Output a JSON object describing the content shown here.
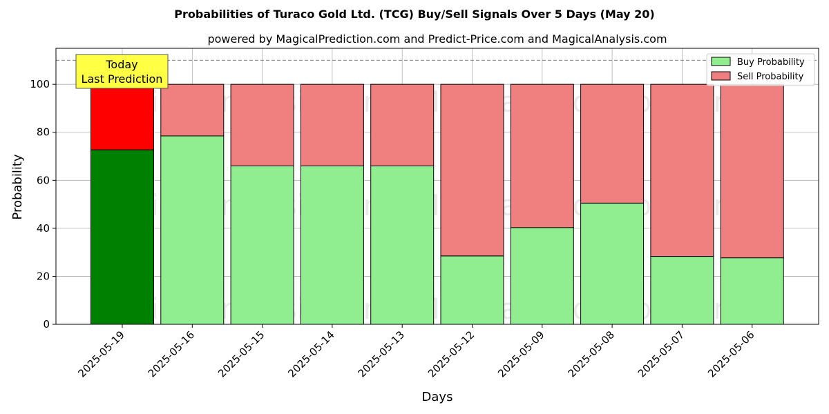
{
  "chart_data": {
    "type": "bar",
    "stacked": true,
    "title": "Probabilities of Turaco Gold Ltd. (TCG) Buy/Sell Signals Over 5 Days (May 20)",
    "subtitle": "powered by MagicalPrediction.com and Predict-Price.com and MagicalAnalysis.com",
    "xlabel": "Days",
    "ylabel": "Probability",
    "ylim": [
      0,
      115
    ],
    "yticks": [
      0,
      20,
      40,
      60,
      80,
      100
    ],
    "grid": true,
    "legend_position": "top-right",
    "reference_line": 110,
    "categories": [
      "2025-05-19",
      "2025-05-16",
      "2025-05-15",
      "2025-05-14",
      "2025-05-13",
      "2025-05-12",
      "2025-05-09",
      "2025-05-08",
      "2025-05-07",
      "2025-05-06"
    ],
    "series": [
      {
        "name": "Buy Probability",
        "color": "#90ee90",
        "highlight_color": "#008000",
        "values": [
          72.7,
          78.5,
          66.0,
          66.0,
          66.0,
          28.5,
          40.3,
          50.5,
          28.3,
          27.7
        ]
      },
      {
        "name": "Sell Probability",
        "color": "#f08080",
        "highlight_color": "#ff0000",
        "values": [
          27.3,
          21.5,
          34.0,
          34.0,
          34.0,
          71.5,
          59.7,
          49.5,
          71.7,
          72.3
        ]
      }
    ],
    "annotation": {
      "lines": [
        "Today",
        "Last Prediction"
      ],
      "background": "#ffff44"
    },
    "watermarks": [
      "MagicalAnalysis.com",
      "MagicalPrediction.com"
    ]
  }
}
